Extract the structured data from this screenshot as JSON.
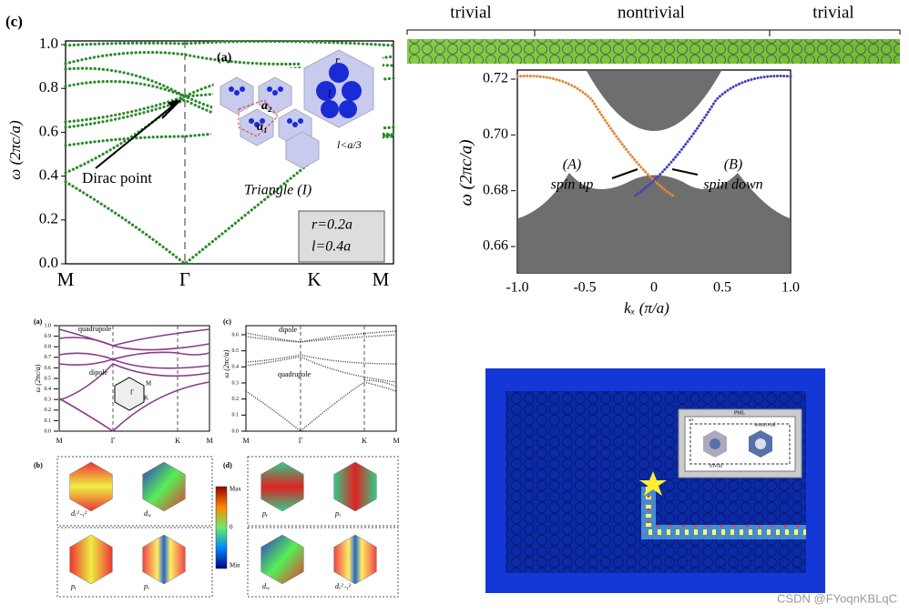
{
  "panel_c": {
    "label": "(c)",
    "ylabel": "ω (2πc/a)",
    "yticks": [
      "0.0",
      "0.2",
      "0.4",
      "0.6",
      "0.8",
      "1.0"
    ],
    "xticks": [
      "M",
      "Γ",
      "K",
      "M"
    ],
    "annotation": "Dirac point",
    "inset": {
      "label": "(a)",
      "r": "r",
      "l": "l",
      "a1": "a₁",
      "a2": "a₂",
      "cond": "l<a/3",
      "name": "Triangle (I)"
    },
    "params": [
      "r=0.2a",
      "l=0.4a"
    ]
  },
  "panel_edge": {
    "regions": [
      "trivial",
      "nontrivial",
      "trivial"
    ],
    "ylabel": "ω (2πc/a)",
    "yticks": [
      "0.72",
      "0.70",
      "0.68",
      "0.66"
    ],
    "xticks": [
      "-1.0",
      "-0.5",
      "0",
      "0.5",
      "1.0"
    ],
    "xlabel": "kₓ (π/a)",
    "modeA": [
      "(A)",
      "spin up"
    ],
    "modeB": [
      "(B)",
      "spin down"
    ]
  },
  "panel_small": {
    "a": {
      "label": "(a)",
      "ylabel": "ω (2πc/a)",
      "yticks": [
        "0.0",
        "0.1",
        "0.2",
        "0.3",
        "0.4",
        "0.5",
        "0.6",
        "0.7",
        "0.8",
        "0.9",
        "1.0"
      ],
      "xticks": [
        "M",
        "Γ",
        "K",
        "M"
      ],
      "notes": [
        "quadrupole",
        "dipole"
      ],
      "bz": [
        "Γ",
        "M",
        "K"
      ]
    },
    "c": {
      "label": "(c)",
      "ylabel": "ω (2πc/a)",
      "yticks": [
        "0.0",
        "0.1",
        "0.2",
        "0.3",
        "0.4",
        "0.5",
        "0.6"
      ],
      "xticks": [
        "M",
        "Γ",
        "K",
        "M"
      ],
      "notes": [
        "dipole",
        "quadrupole"
      ]
    }
  },
  "panel_fields": {
    "b": {
      "label": "(b)",
      "modes": [
        "dₓ²₋ᵧ²",
        "dₓᵧ",
        "pᵧ",
        "pₓ"
      ]
    },
    "d": {
      "label": "(d)",
      "modes": [
        "pᵧ",
        "pₓ",
        "dₓᵧ",
        "dₓ²₋ᵧ²"
      ]
    },
    "colorbar": [
      "Max",
      "0",
      "Min"
    ]
  },
  "panel_sim": {
    "pml": "PML",
    "left": "trivial",
    "right": "nontrivial",
    "air": "air"
  },
  "watermark": "CSDN @FYoqnKBLqC"
}
